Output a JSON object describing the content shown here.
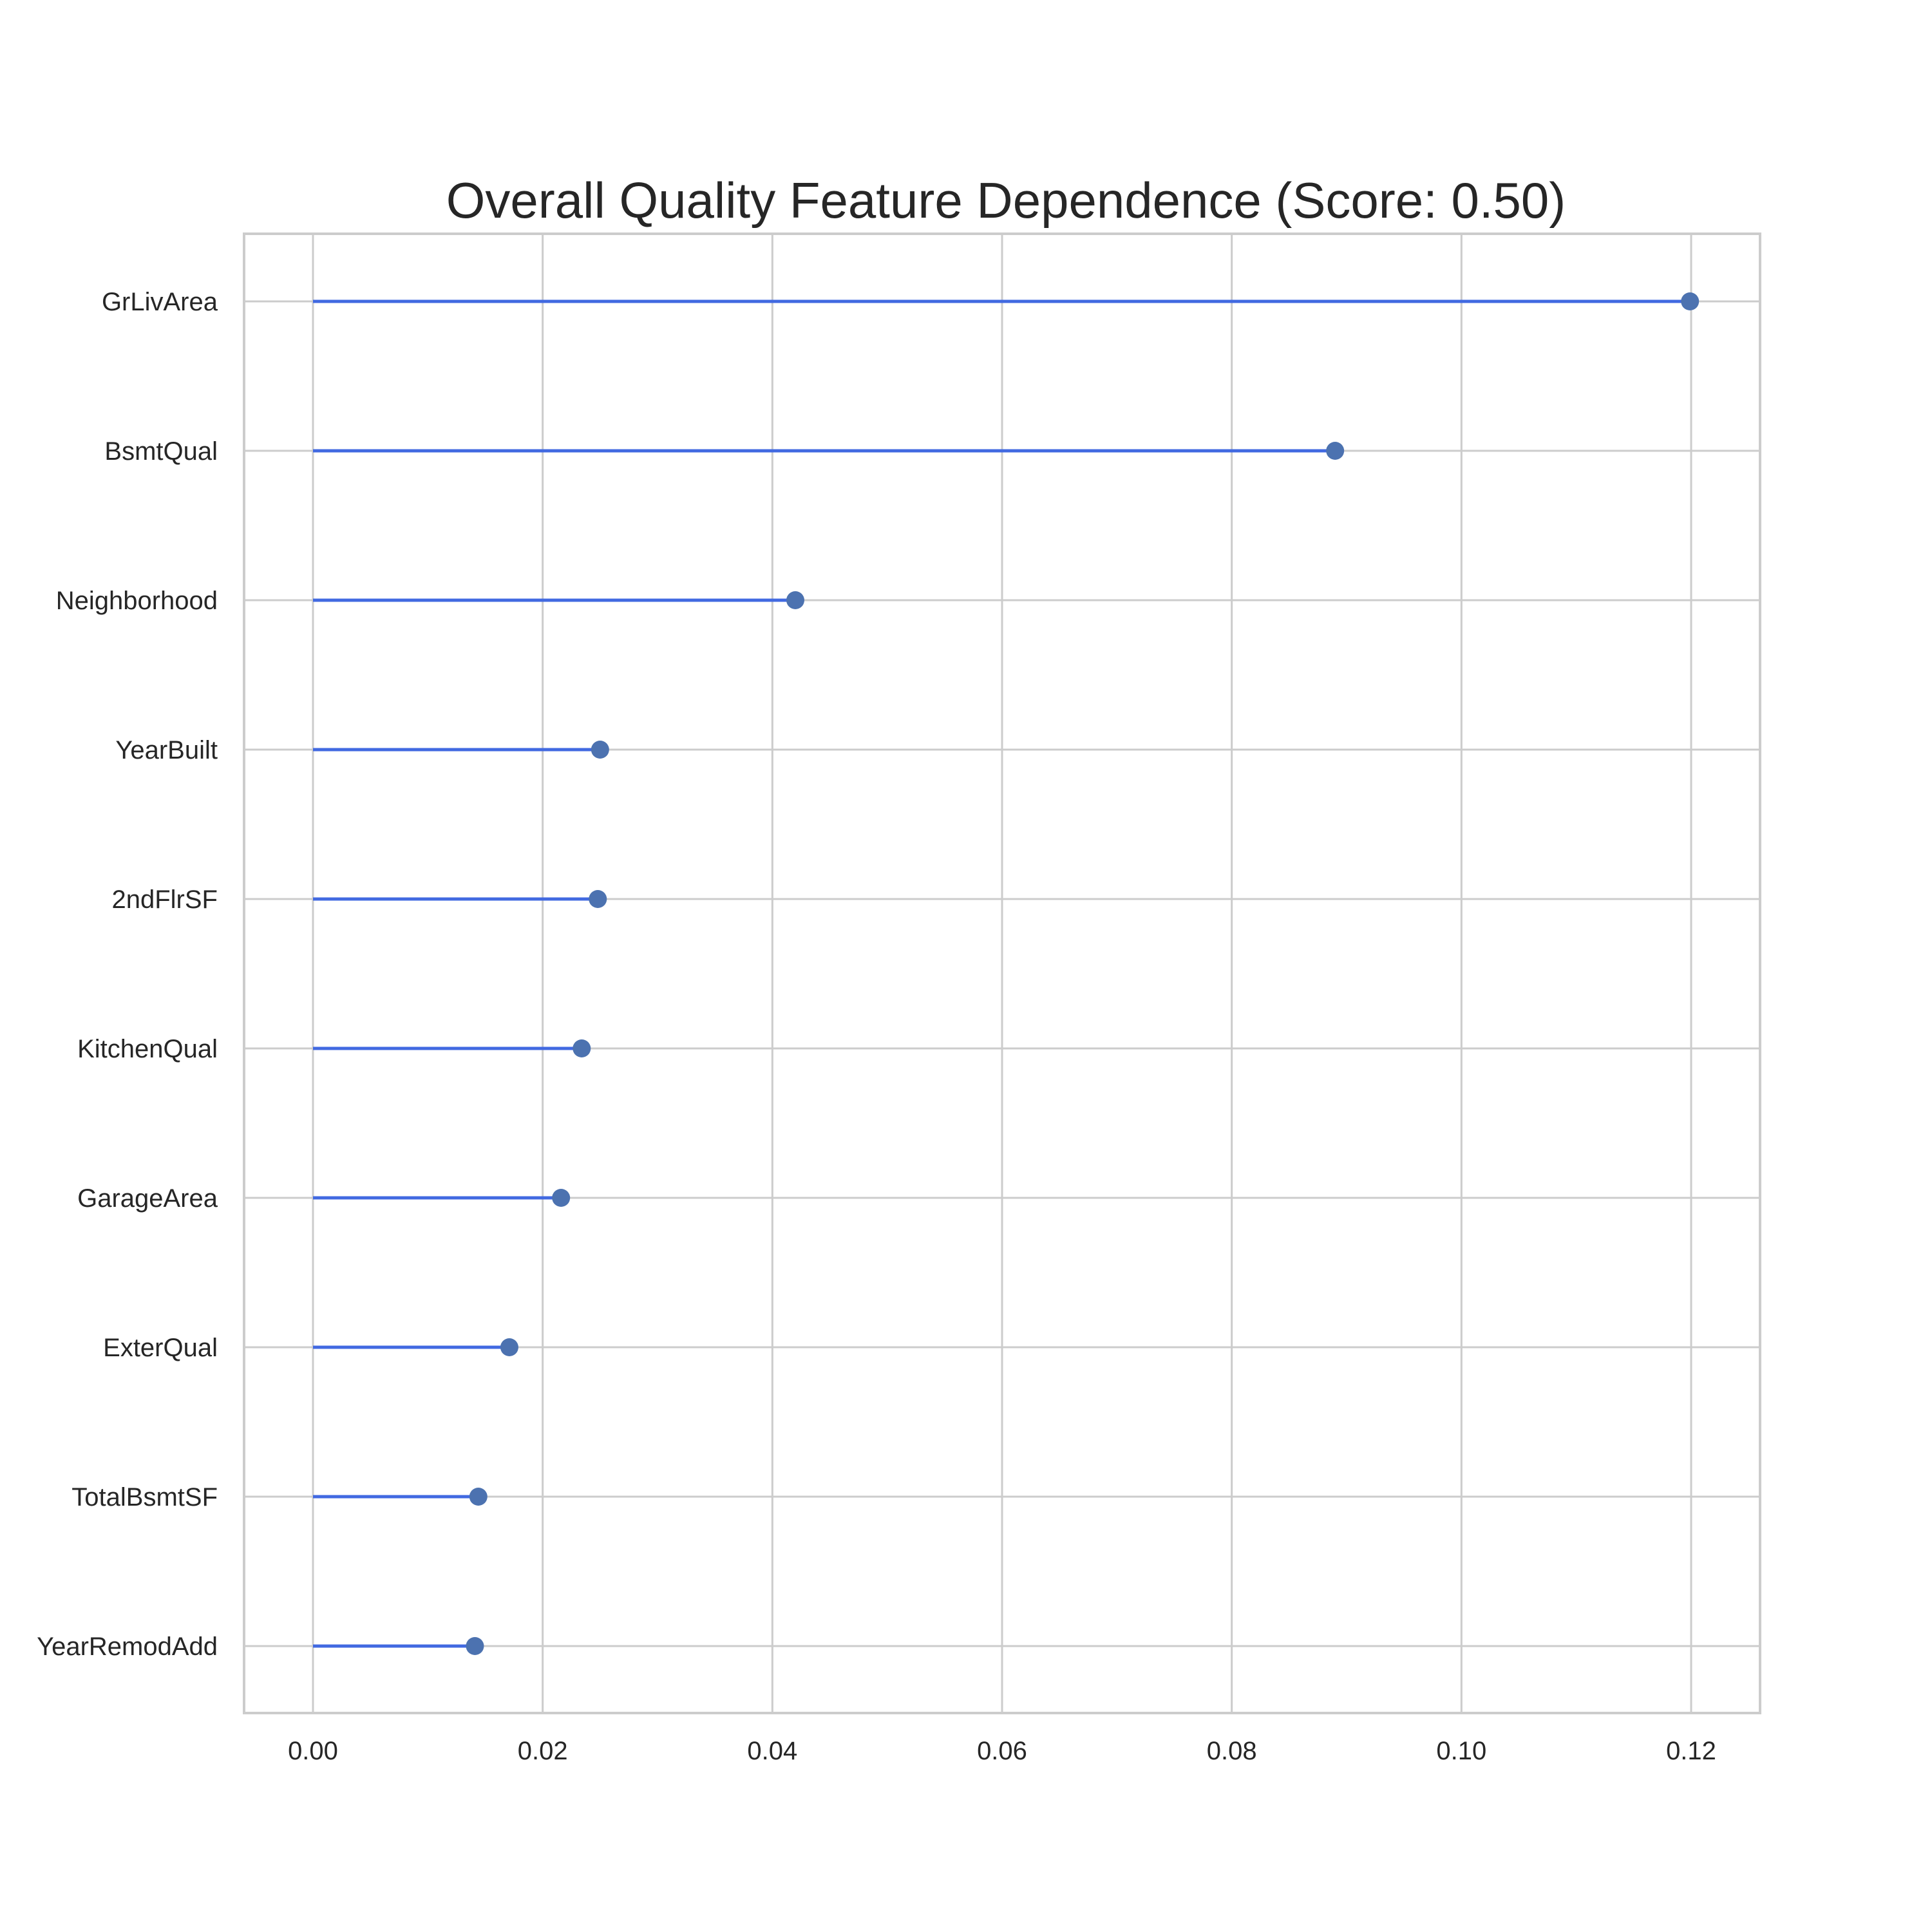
{
  "chart_data": {
    "type": "lollipop",
    "title": "Overall Quality Feature Dependence (Score: 0.50)",
    "xlabel": "",
    "ylabel": "",
    "categories": [
      "GrLivArea",
      "BsmtQual",
      "Neighborhood",
      "YearBuilt",
      "2ndFlrSF",
      "KitchenQual",
      "GarageArea",
      "ExterQual",
      "TotalBsmtSF",
      "YearRemodAdd"
    ],
    "values": [
      0.1199,
      0.089,
      0.042,
      0.025,
      0.0248,
      0.0234,
      0.0216,
      0.0171,
      0.0144,
      0.0141
    ],
    "xlim": [
      -0.006,
      0.126
    ],
    "xticks": [
      "0.00",
      "0.02",
      "0.04",
      "0.06",
      "0.08",
      "0.10",
      "0.12"
    ],
    "grid": true,
    "legend": "none",
    "colors": {
      "stem": "#4169e1",
      "marker": "#4c72b0",
      "grid": "#cccccc",
      "frame": "#cccccc",
      "text": "#262626"
    }
  }
}
